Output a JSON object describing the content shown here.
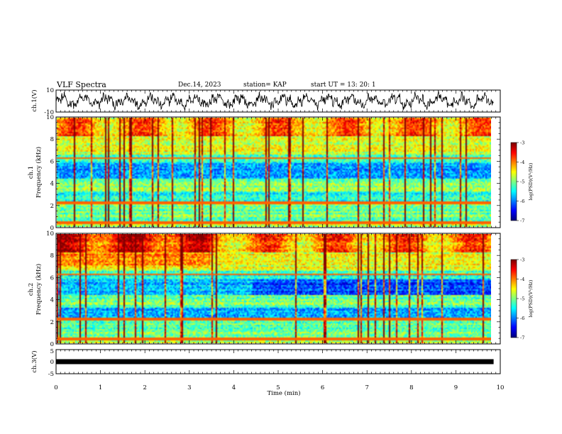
{
  "header": {
    "title": "VLF Spectra",
    "date": "Dec.14, 2023",
    "station": "station= KAP",
    "start_ut": "start  UT  =   13: 20: 1"
  },
  "chart_data": [
    {
      "type": "line",
      "name": "ch1-waveform",
      "ylabel": "ch.1(V)",
      "ylim": [
        -10,
        10
      ],
      "yticks": [
        "10",
        "-10"
      ],
      "xlim": [
        0,
        10
      ]
    },
    {
      "type": "heatmap",
      "name": "ch1-spectrogram",
      "ylabel_line1": "ch.1",
      "ylabel_line2": "Frequency (kHz)",
      "ylim": [
        0,
        10
      ],
      "yticks": [
        "0",
        "2",
        "4",
        "6",
        "8",
        "10"
      ],
      "xlim": [
        0,
        9.85
      ],
      "colorbar": {
        "label": "log(PSD)(V²/Hz)",
        "range": [
          -7,
          -3
        ],
        "ticks": [
          "-3",
          "-4",
          "-5",
          "-6",
          "-7"
        ]
      }
    },
    {
      "type": "heatmap",
      "name": "ch2-spectrogram",
      "ylabel_line1": "ch.2",
      "ylabel_line2": "Frequency (kHz)",
      "ylim": [
        0,
        10
      ],
      "yticks": [
        "0",
        "2",
        "4",
        "6",
        "8",
        "10"
      ],
      "xlim": [
        0,
        9.85
      ],
      "colorbar": {
        "label": "log(PSD)(V²/Hz)",
        "range": [
          -7,
          -3
        ],
        "ticks": [
          "-3",
          "-4",
          "-5",
          "-6",
          "-7"
        ]
      }
    },
    {
      "type": "line",
      "name": "ch3-waveform",
      "ylabel": "ch.3(V)",
      "ylim": [
        -5,
        5
      ],
      "yticks": [
        "5",
        "0",
        "-5"
      ],
      "x": [
        0,
        9.85
      ],
      "y": [
        0,
        0
      ],
      "xlim": [
        0,
        10
      ]
    }
  ],
  "xaxis": {
    "label": "Time  (min)",
    "ticks": [
      "0",
      "1",
      "2",
      "3",
      "4",
      "5",
      "6",
      "7",
      "8",
      "9",
      "10"
    ],
    "range": [
      0,
      10
    ]
  }
}
